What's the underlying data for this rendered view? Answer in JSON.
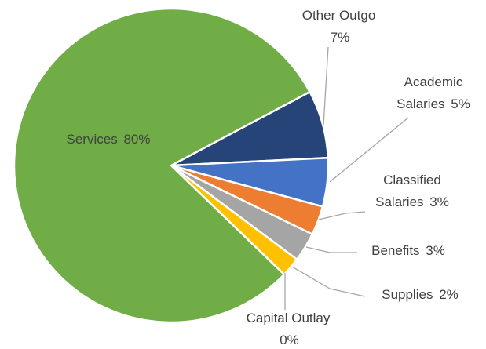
{
  "chart_data": {
    "type": "pie",
    "categories": [
      "Other Outgo",
      "Academic Salaries",
      "Classified Salaries",
      "Benefits",
      "Supplies",
      "Capital Outlay",
      "Services"
    ],
    "values": [
      7,
      5,
      3,
      3,
      2,
      0,
      80
    ],
    "value_labels": [
      "7%",
      "5%",
      "3%",
      "3%",
      "2%",
      "0%",
      "80%"
    ],
    "colors": [
      "#264478",
      "#4472c4",
      "#ed7d31",
      "#a5a5a5",
      "#ffc000",
      "#5b9bd5",
      "#70ad47"
    ]
  }
}
